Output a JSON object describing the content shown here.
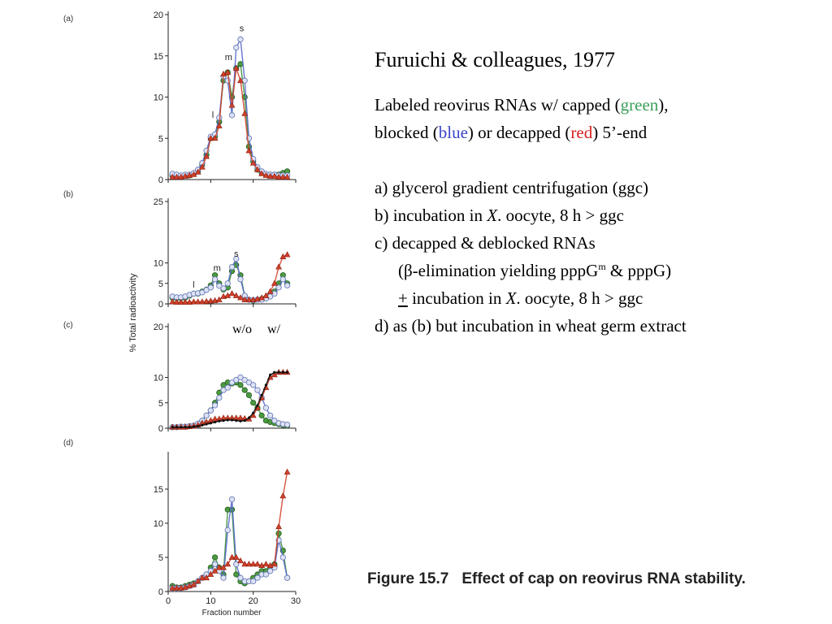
{
  "slide": {
    "title": "Furuichi & colleagues, 1977",
    "desc_1": "Labeled reovirus RNAs w/ capped (",
    "green_word": "green",
    "desc_2": "),",
    "desc_3": "blocked (",
    "blue_word": "blue",
    "desc_4": ") or decapped (",
    "red_word": "red",
    "desc_5": ") 5’-end",
    "item_a": "a) glycerol gradient centrifugation (ggc)",
    "item_b_1": "b) incubation in ",
    "item_b_x": "X",
    "item_b_2": ". oocyte, 8 h > ggc",
    "item_c": "c) decapped & deblocked RNAs",
    "item_c_sub_1": "(β-elimination yielding pppG",
    "item_c_sup": "m",
    "item_c_sub_2": " & pppG)",
    "item_c2_plus": "+",
    "item_c2_1": " incubation in ",
    "item_c2_x": "X",
    "item_c2_2": ". oocyte, 8 h > ggc",
    "item_d": "d) as (b) but incubation in wheat germ extract",
    "caption_num": "Figure 15.7",
    "caption_text": "Effect of cap on reovirus RNA stability."
  },
  "colors": {
    "green": "#3a8f3a",
    "blue": "#5566cc",
    "red": "#d0412a",
    "black": "#111111",
    "caption": "#222222"
  },
  "chart_data": {
    "type": "line",
    "ylabel": "% Total radioactivity",
    "xlabel": "Fraction number",
    "x_ticks": [
      0,
      10,
      20,
      30
    ],
    "xlim": [
      0,
      30
    ],
    "panel_annotations": {
      "c": [
        "w/o",
        "w/"
      ]
    },
    "panels": [
      {
        "label": "(a)",
        "ylim": [
          0,
          20
        ],
        "y_ticks": [
          0,
          5,
          10,
          15,
          20
        ],
        "peak_labels": [
          {
            "text": "l",
            "x": 10.5,
            "y": 7.5
          },
          {
            "text": "m",
            "x": 14.2,
            "y": 14.5
          },
          {
            "text": "s",
            "x": 17.3,
            "y": 18.0
          }
        ],
        "series": [
          {
            "name": "green",
            "x": [
              1,
              2,
              3,
              4,
              5,
              6,
              7,
              8,
              9,
              10,
              11,
              12,
              13,
              14,
              15,
              16,
              17,
              18,
              19,
              20,
              21,
              22,
              23,
              24,
              25,
              26,
              27,
              28
            ],
            "y": [
              0.5,
              0.4,
              0.4,
              0.5,
              0.5,
              0.7,
              1.0,
              1.8,
              3.0,
              5.0,
              5.2,
              7.0,
              12.0,
              13.0,
              10.0,
              13.5,
              14.0,
              10.0,
              4.0,
              2.2,
              1.2,
              0.8,
              0.6,
              0.6,
              0.6,
              0.6,
              0.8,
              1.0
            ]
          },
          {
            "name": "blue",
            "x": [
              1,
              2,
              3,
              4,
              5,
              6,
              7,
              8,
              9,
              10,
              11,
              12,
              13,
              14,
              15,
              16,
              17,
              18,
              19,
              20,
              21,
              22,
              23,
              24,
              25,
              26,
              27,
              28
            ],
            "y": [
              0.7,
              0.6,
              0.5,
              0.6,
              0.6,
              0.8,
              1.2,
              2.0,
              3.5,
              5.2,
              5.5,
              7.5,
              12.5,
              12.0,
              7.8,
              16.0,
              17.0,
              12.0,
              5.0,
              2.5,
              1.5,
              1.0,
              0.7,
              0.6,
              0.6,
              0.5,
              0.5,
              0.5
            ]
          },
          {
            "name": "red",
            "x": [
              1,
              2,
              3,
              4,
              5,
              6,
              7,
              8,
              9,
              10,
              11,
              12,
              13,
              14,
              15,
              16,
              17,
              18,
              19,
              20,
              21,
              22,
              23,
              24,
              25,
              26,
              27,
              28
            ],
            "y": [
              0.3,
              0.3,
              0.3,
              0.4,
              0.5,
              0.6,
              0.9,
              1.5,
              2.8,
              5.0,
              5.0,
              6.5,
              12.8,
              13.0,
              9.0,
              13.5,
              12.0,
              8.0,
              3.5,
              2.0,
              1.2,
              0.7,
              0.5,
              0.4,
              0.4,
              0.3,
              0.3,
              0.3
            ]
          }
        ]
      },
      {
        "label": "(b)",
        "ylim": [
          0,
          25
        ],
        "y_ticks": [
          0,
          5,
          10,
          25
        ],
        "peak_labels": [
          {
            "text": "l",
            "x": 6.0,
            "y": 4.0
          },
          {
            "text": "m",
            "x": 11.5,
            "y": 8.0
          },
          {
            "text": "s",
            "x": 16.0,
            "y": 11.5
          }
        ],
        "series": [
          {
            "name": "green",
            "x": [
              1,
              2,
              3,
              4,
              5,
              6,
              7,
              8,
              9,
              10,
              11,
              12,
              13,
              14,
              15,
              16,
              17,
              18,
              19,
              20,
              21,
              22,
              23,
              24,
              25,
              26,
              27,
              28
            ],
            "y": [
              1.5,
              1.4,
              1.4,
              1.5,
              2.0,
              2.5,
              2.5,
              3.0,
              3.5,
              4.5,
              7.0,
              5.0,
              3.5,
              4.0,
              8.0,
              9.5,
              7.0,
              2.0,
              1.0,
              0.8,
              1.0,
              1.2,
              1.5,
              2.0,
              3.0,
              5.0,
              7.0,
              5.0
            ]
          },
          {
            "name": "blue",
            "x": [
              1,
              2,
              3,
              4,
              5,
              6,
              7,
              8,
              9,
              10,
              11,
              12,
              13,
              14,
              15,
              16,
              17,
              18,
              19,
              20,
              21,
              22,
              23,
              24,
              25,
              26,
              27,
              28
            ],
            "y": [
              1.8,
              1.6,
              1.6,
              1.8,
              2.2,
              2.5,
              2.6,
              2.8,
              3.4,
              4.0,
              6.0,
              4.4,
              3.8,
              5.0,
              9.0,
              11.0,
              6.0,
              2.0,
              1.0,
              0.9,
              1.0,
              1.0,
              1.3,
              1.8,
              2.5,
              4.0,
              6.0,
              4.5
            ]
          },
          {
            "name": "red",
            "x": [
              1,
              2,
              3,
              4,
              5,
              6,
              7,
              8,
              9,
              10,
              11,
              12,
              13,
              14,
              15,
              16,
              17,
              18,
              19,
              20,
              21,
              22,
              23,
              24,
              25,
              26,
              27,
              28
            ],
            "y": [
              0.5,
              0.4,
              0.4,
              0.4,
              0.4,
              0.5,
              0.5,
              0.5,
              0.6,
              0.7,
              0.8,
              1.0,
              1.8,
              2.0,
              2.5,
              2.0,
              1.5,
              1.0,
              1.0,
              1.0,
              1.2,
              1.5,
              2.0,
              3.0,
              5.0,
              9.0,
              11.5,
              12.0
            ]
          }
        ]
      },
      {
        "label": "(c)",
        "ylim": [
          0,
          20
        ],
        "y_ticks": [
          0,
          5,
          10,
          20
        ],
        "peak_labels": [],
        "series": [
          {
            "name": "green",
            "x": [
              1,
              2,
              3,
              4,
              5,
              6,
              7,
              8,
              9,
              10,
              11,
              12,
              13,
              14,
              15,
              16,
              17,
              18,
              19,
              20,
              21,
              22,
              23,
              24,
              25,
              26,
              27,
              28
            ],
            "y": [
              0.2,
              0.2,
              0.3,
              0.3,
              0.4,
              0.5,
              0.8,
              1.5,
              2.5,
              3.5,
              5.0,
              7.0,
              8.5,
              9.0,
              8.8,
              9.0,
              8.5,
              7.5,
              6.5,
              5.0,
              4.0,
              2.5,
              1.5,
              1.2,
              1.0,
              0.8,
              0.6,
              0.5
            ]
          },
          {
            "name": "blue",
            "x": [
              1,
              2,
              3,
              4,
              5,
              6,
              7,
              8,
              9,
              10,
              11,
              12,
              13,
              14,
              15,
              16,
              17,
              18,
              19,
              20,
              21,
              22,
              23,
              24,
              25,
              26,
              27,
              28
            ],
            "y": [
              0.2,
              0.2,
              0.3,
              0.3,
              0.4,
              0.5,
              0.9,
              1.5,
              2.5,
              3.5,
              4.5,
              6.0,
              7.5,
              8.0,
              9.0,
              9.5,
              10.0,
              9.5,
              9.0,
              8.5,
              7.5,
              6.0,
              4.0,
              2.5,
              1.5,
              1.0,
              0.8,
              0.7
            ]
          },
          {
            "name": "red",
            "x": [
              1,
              2,
              3,
              4,
              5,
              6,
              7,
              8,
              9,
              10,
              11,
              12,
              13,
              14,
              15,
              16,
              17,
              18,
              19,
              20,
              21,
              22,
              23,
              24,
              25,
              26,
              27,
              28
            ],
            "y": [
              0.2,
              0.2,
              0.2,
              0.2,
              0.3,
              0.4,
              0.6,
              1.0,
              1.2,
              1.5,
              1.8,
              1.8,
              2.0,
              2.0,
              2.0,
              2.0,
              2.0,
              1.9,
              1.8,
              2.5,
              4.0,
              6.0,
              8.0,
              10.0,
              10.5,
              11.0,
              11.0,
              11.0
            ]
          },
          {
            "name": "black",
            "x": [
              1,
              2,
              3,
              4,
              5,
              6,
              7,
              8,
              9,
              10,
              11,
              12,
              13,
              14,
              15,
              16,
              17,
              18,
              19,
              20,
              21,
              22,
              23,
              24,
              25,
              26,
              27,
              28
            ],
            "y": [
              0.2,
              0.2,
              0.2,
              0.2,
              0.2,
              0.3,
              0.4,
              0.6,
              0.8,
              1.0,
              1.2,
              1.4,
              1.5,
              1.6,
              1.6,
              1.5,
              1.4,
              1.5,
              2.0,
              3.0,
              4.5,
              6.5,
              8.5,
              10.5,
              11.0,
              11.0,
              11.0,
              11.0
            ]
          }
        ]
      },
      {
        "label": "(d)",
        "ylim": [
          0,
          20
        ],
        "y_ticks": [
          0,
          5,
          10,
          15
        ],
        "peak_labels": [],
        "series": [
          {
            "name": "green",
            "x": [
              1,
              2,
              3,
              4,
              5,
              6,
              7,
              8,
              9,
              10,
              11,
              12,
              13,
              14,
              15,
              16,
              17,
              18,
              19,
              20,
              21,
              22,
              23,
              24,
              25,
              26,
              27,
              28
            ],
            "y": [
              0.8,
              0.6,
              0.6,
              0.8,
              1.0,
              1.2,
              1.5,
              2.0,
              2.5,
              3.5,
              5.0,
              3.5,
              2.5,
              12.0,
              12.0,
              2.5,
              1.5,
              1.2,
              1.5,
              2.0,
              2.5,
              3.0,
              3.0,
              3.5,
              4.0,
              8.5,
              6.0,
              2.0
            ]
          },
          {
            "name": "blue",
            "x": [
              1,
              2,
              3,
              4,
              5,
              6,
              7,
              8,
              9,
              10,
              11,
              12,
              13,
              14,
              15,
              16,
              17,
              18,
              19,
              20,
              21,
              22,
              23,
              24,
              25,
              26,
              27,
              28
            ],
            "y": [
              0.5,
              0.5,
              0.5,
              0.6,
              0.8,
              1.0,
              1.5,
              2.0,
              2.5,
              3.0,
              4.0,
              3.0,
              2.0,
              9.0,
              13.5,
              4.0,
              2.0,
              1.5,
              1.5,
              1.5,
              2.0,
              2.5,
              2.5,
              3.0,
              3.5,
              7.5,
              5.0,
              2.0
            ]
          },
          {
            "name": "red",
            "x": [
              1,
              2,
              3,
              4,
              5,
              6,
              7,
              8,
              9,
              10,
              11,
              12,
              13,
              14,
              15,
              16,
              17,
              18,
              19,
              20,
              21,
              22,
              23,
              24,
              25,
              26,
              27,
              28
            ],
            "y": [
              0.5,
              0.5,
              0.5,
              0.6,
              0.8,
              1.0,
              1.5,
              2.0,
              2.0,
              2.5,
              3.0,
              3.5,
              3.5,
              4.0,
              5.0,
              5.0,
              4.5,
              4.0,
              4.0,
              4.0,
              4.0,
              3.8,
              4.0,
              3.8,
              4.0,
              9.5,
              14.0,
              17.5
            ]
          }
        ]
      }
    ]
  }
}
